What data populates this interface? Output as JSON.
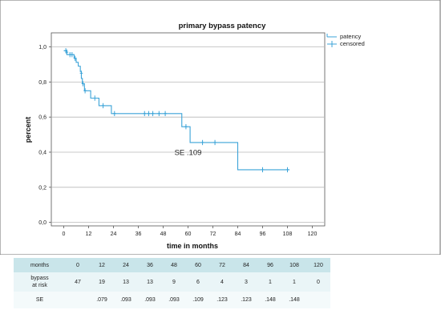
{
  "chart_data": {
    "type": "line",
    "title": "primary bypass patency",
    "xlabel": "time in months",
    "ylabel": "percent",
    "xlim": [
      -6,
      126
    ],
    "ylim": [
      -0.02,
      1.08
    ],
    "x_ticks": [
      0,
      12,
      24,
      36,
      48,
      60,
      72,
      84,
      96,
      108,
      120
    ],
    "y_ticks": [
      0.0,
      0.2,
      0.4,
      0.6,
      0.8,
      1.0
    ],
    "y_tick_labels": [
      "0,0",
      "0,2",
      "0,4",
      "0,6",
      "0,8",
      "1,0"
    ],
    "grid": "horizontal",
    "legend_position": "top-right",
    "colors": {
      "line": "#3ba3d8",
      "grid": "#b8b8b8"
    },
    "series": [
      {
        "name": "patency",
        "steps": [
          [
            0,
            0.978
          ],
          [
            1.5,
            0.956
          ],
          [
            5,
            0.935
          ],
          [
            6,
            0.912
          ],
          [
            7,
            0.89
          ],
          [
            8,
            0.86
          ],
          [
            8.5,
            0.82
          ],
          [
            9,
            0.79
          ],
          [
            10,
            0.75
          ],
          [
            13,
            0.708
          ],
          [
            17,
            0.665
          ],
          [
            23,
            0.62
          ],
          [
            57,
            0.545
          ],
          [
            61,
            0.455
          ],
          [
            84,
            0.3
          ],
          [
            109,
            0.3
          ]
        ]
      },
      {
        "name": "censored",
        "points": [
          [
            1,
            0.978
          ],
          [
            1.5,
            0.97
          ],
          [
            3,
            0.956
          ],
          [
            4,
            0.956
          ],
          [
            5.5,
            0.935
          ],
          [
            8.5,
            0.85
          ],
          [
            9.3,
            0.79
          ],
          [
            10.3,
            0.75
          ],
          [
            15,
            0.708
          ],
          [
            19,
            0.665
          ],
          [
            24.5,
            0.62
          ],
          [
            39,
            0.62
          ],
          [
            41,
            0.62
          ],
          [
            43,
            0.62
          ],
          [
            46,
            0.62
          ],
          [
            49,
            0.62
          ],
          [
            59,
            0.545
          ],
          [
            67,
            0.455
          ],
          [
            73,
            0.455
          ],
          [
            96,
            0.3
          ],
          [
            108,
            0.3
          ]
        ]
      }
    ],
    "annotations": [
      {
        "text": "SE .109",
        "x": 60,
        "y": 0.4
      }
    ]
  },
  "table": {
    "header_label": "months",
    "months": [
      "0",
      "12",
      "24",
      "36",
      "48",
      "60",
      "72",
      "84",
      "96",
      "108",
      "120"
    ],
    "row_b_label": [
      "bypass",
      "at risk"
    ],
    "at_risk": [
      "47",
      "19",
      "13",
      "13",
      "9",
      "6",
      "4",
      "3",
      "1",
      "1",
      "0"
    ],
    "row_c_label": "SE",
    "se": [
      "",
      ".079",
      ".093",
      ".093",
      ".093",
      ".109",
      ".123",
      ".123",
      ".148",
      ".148",
      ""
    ]
  }
}
